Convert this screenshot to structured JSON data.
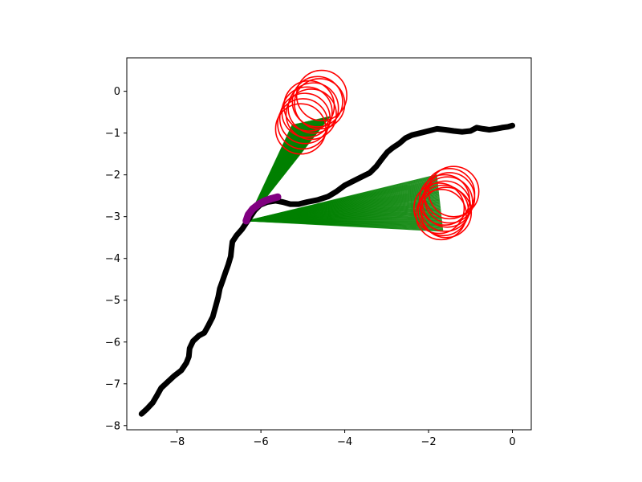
{
  "chart_data": {
    "type": "scatter",
    "title": "",
    "xlabel": "",
    "ylabel": "",
    "xlim": [
      -9.2,
      0.45
    ],
    "ylim": [
      -8.1,
      0.8
    ],
    "xticks": [
      -8,
      -6,
      -4,
      -2,
      0
    ],
    "yticks": [
      0,
      -1,
      -2,
      -3,
      -4,
      -5,
      -6,
      -7,
      -8
    ],
    "xtick_labels": [
      "−8",
      "−6",
      "−4",
      "−2",
      "0"
    ],
    "ytick_labels": [
      "0",
      "−1",
      "−2",
      "−3",
      "−4",
      "−5",
      "−6",
      "−7",
      "−8"
    ],
    "grid": false,
    "legend": "none",
    "colors": {
      "trajectory": "#000000",
      "segment": "#800080",
      "cone": "#008000",
      "circle": "#ff0000"
    },
    "trajectory": [
      [
        -8.85,
        -7.72
      ],
      [
        -8.72,
        -7.6
      ],
      [
        -8.58,
        -7.45
      ],
      [
        -8.48,
        -7.28
      ],
      [
        -8.38,
        -7.1
      ],
      [
        -8.22,
        -6.95
      ],
      [
        -8.08,
        -6.82
      ],
      [
        -7.9,
        -6.68
      ],
      [
        -7.78,
        -6.5
      ],
      [
        -7.72,
        -6.35
      ],
      [
        -7.7,
        -6.15
      ],
      [
        -7.62,
        -5.98
      ],
      [
        -7.48,
        -5.85
      ],
      [
        -7.35,
        -5.78
      ],
      [
        -7.25,
        -5.6
      ],
      [
        -7.15,
        -5.4
      ],
      [
        -7.08,
        -5.15
      ],
      [
        -7.02,
        -4.92
      ],
      [
        -6.98,
        -4.72
      ],
      [
        -6.92,
        -4.55
      ],
      [
        -6.85,
        -4.35
      ],
      [
        -6.78,
        -4.15
      ],
      [
        -6.72,
        -3.95
      ],
      [
        -6.7,
        -3.75
      ],
      [
        -6.68,
        -3.6
      ],
      [
        -6.58,
        -3.45
      ],
      [
        -6.45,
        -3.3
      ],
      [
        -6.35,
        -3.15
      ],
      [
        -6.25,
        -3.0
      ],
      [
        -6.15,
        -2.85
      ],
      [
        -6.02,
        -2.72
      ],
      [
        -5.85,
        -2.65
      ],
      [
        -5.65,
        -2.62
      ],
      [
        -5.48,
        -2.65
      ],
      [
        -5.3,
        -2.7
      ],
      [
        -5.1,
        -2.7
      ],
      [
        -4.9,
        -2.65
      ],
      [
        -4.65,
        -2.6
      ],
      [
        -4.4,
        -2.52
      ],
      [
        -4.2,
        -2.4
      ],
      [
        -4.0,
        -2.25
      ],
      [
        -3.8,
        -2.15
      ],
      [
        -3.6,
        -2.05
      ],
      [
        -3.4,
        -1.95
      ],
      [
        -3.25,
        -1.8
      ],
      [
        -3.1,
        -1.6
      ],
      [
        -2.98,
        -1.45
      ],
      [
        -2.85,
        -1.35
      ],
      [
        -2.7,
        -1.25
      ],
      [
        -2.55,
        -1.12
      ],
      [
        -2.4,
        -1.05
      ],
      [
        -2.2,
        -1.0
      ],
      [
        -2.0,
        -0.95
      ],
      [
        -1.8,
        -0.9
      ],
      [
        -1.6,
        -0.92
      ],
      [
        -1.4,
        -0.95
      ],
      [
        -1.2,
        -0.97
      ],
      [
        -1.0,
        -0.95
      ],
      [
        -0.85,
        -0.87
      ],
      [
        -0.7,
        -0.9
      ],
      [
        -0.55,
        -0.92
      ],
      [
        -0.4,
        -0.9
      ],
      [
        -0.25,
        -0.87
      ],
      [
        -0.1,
        -0.85
      ],
      [
        0.0,
        -0.82
      ]
    ],
    "segment": [
      [
        -6.35,
        -3.1
      ],
      [
        -6.3,
        -2.95
      ],
      [
        -6.2,
        -2.82
      ],
      [
        -6.05,
        -2.7
      ],
      [
        -5.9,
        -2.62
      ],
      [
        -5.75,
        -2.57
      ],
      [
        -5.6,
        -2.53
      ]
    ],
    "cone_origin": [
      -6.32,
      -3.1
    ],
    "cone_upper_edge": [
      [
        -5.25,
        -0.8
      ],
      [
        -4.35,
        -0.6
      ]
    ],
    "cone_lower_edge": [
      [
        -1.8,
        -2.0
      ],
      [
        -1.65,
        -3.35
      ]
    ],
    "circles_upper": [
      [
        -4.55,
        -0.1
      ],
      [
        -4.65,
        -0.25
      ],
      [
        -4.75,
        -0.4
      ],
      [
        -4.9,
        -0.5
      ],
      [
        -4.95,
        -0.65
      ],
      [
        -5.0,
        -0.78
      ],
      [
        -4.8,
        -0.55
      ],
      [
        -4.6,
        -0.3
      ],
      [
        -4.85,
        -0.35
      ],
      [
        -5.05,
        -0.9
      ]
    ],
    "circles_lower": [
      [
        -1.4,
        -2.4
      ],
      [
        -1.5,
        -2.55
      ],
      [
        -1.55,
        -2.65
      ],
      [
        -1.6,
        -2.75
      ],
      [
        -1.65,
        -2.85
      ],
      [
        -1.7,
        -2.95
      ],
      [
        -1.5,
        -2.45
      ],
      [
        -1.62,
        -2.6
      ],
      [
        -1.75,
        -2.8
      ],
      [
        -1.58,
        -2.9
      ]
    ],
    "circle_radius": 0.6
  }
}
